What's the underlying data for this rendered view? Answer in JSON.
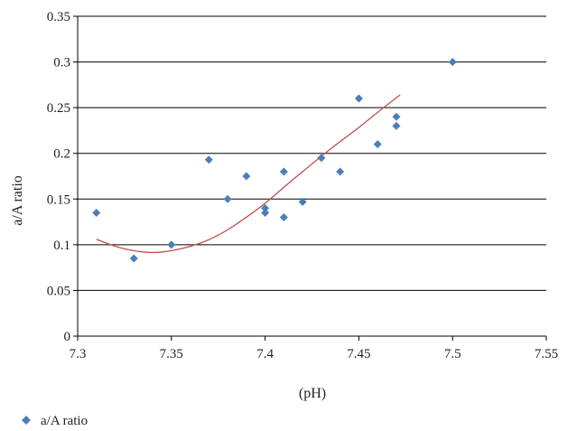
{
  "chart_data": {
    "type": "scatter",
    "title": "",
    "xlabel": "(pH)",
    "ylabel": "a/A ratio",
    "xlim": [
      7.3,
      7.55
    ],
    "ylim": [
      0,
      0.35
    ],
    "x_ticks": [
      7.3,
      7.35,
      7.4,
      7.45,
      7.5,
      7.55
    ],
    "x_tick_labels": [
      "7.3",
      "7.35",
      "7.4",
      "7.45",
      "7.5",
      "7.55"
    ],
    "y_ticks": [
      0,
      0.05,
      0.1,
      0.15,
      0.2,
      0.25,
      0.3,
      0.35
    ],
    "y_tick_labels": [
      "0",
      "0.05",
      "0.1",
      "0.15",
      "0.2",
      "0.25",
      "0.3",
      "0.35"
    ],
    "grid": "horizontal",
    "legend_position": "bottom-left",
    "series": [
      {
        "name": "a/A ratio",
        "color": "#4a7ebb",
        "marker": "diamond",
        "points": [
          [
            7.31,
            0.135
          ],
          [
            7.33,
            0.085
          ],
          [
            7.35,
            0.1
          ],
          [
            7.37,
            0.193
          ],
          [
            7.38,
            0.15
          ],
          [
            7.39,
            0.175
          ],
          [
            7.4,
            0.14
          ],
          [
            7.4,
            0.135
          ],
          [
            7.41,
            0.18
          ],
          [
            7.41,
            0.13
          ],
          [
            7.42,
            0.147
          ],
          [
            7.43,
            0.195
          ],
          [
            7.44,
            0.18
          ],
          [
            7.45,
            0.26
          ],
          [
            7.46,
            0.21
          ],
          [
            7.47,
            0.24
          ],
          [
            7.47,
            0.23
          ],
          [
            7.5,
            0.3
          ]
        ]
      }
    ],
    "trendline": {
      "type": "polynomial",
      "color": "#c0504d",
      "x_range": [
        7.31,
        7.472
      ],
      "points": [
        [
          7.31,
          0.106
        ],
        [
          7.32,
          0.098
        ],
        [
          7.33,
          0.093
        ],
        [
          7.34,
          0.091
        ],
        [
          7.35,
          0.093
        ],
        [
          7.36,
          0.098
        ],
        [
          7.37,
          0.105
        ],
        [
          7.38,
          0.116
        ],
        [
          7.39,
          0.13
        ],
        [
          7.4,
          0.145
        ],
        [
          7.41,
          0.163
        ],
        [
          7.42,
          0.18
        ],
        [
          7.43,
          0.197
        ],
        [
          7.44,
          0.213
        ],
        [
          7.45,
          0.228
        ],
        [
          7.46,
          0.245
        ],
        [
          7.472,
          0.264
        ]
      ]
    }
  }
}
